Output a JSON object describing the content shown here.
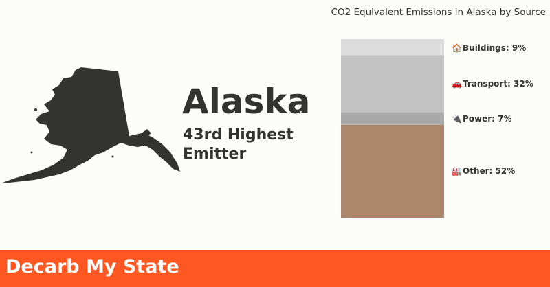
{
  "state": {
    "name": "Alaska",
    "rank_text": "43rd Highest Emitter"
  },
  "chart_data": {
    "type": "bar",
    "stacked": true,
    "title": "CO2 Equivalent Emissions in Alaska by Source",
    "unit": "%",
    "segments": [
      {
        "label": "Buildings: 9%",
        "category": "Buildings",
        "value": 9,
        "color": "#dcdcdc",
        "icon": "house-icon",
        "glyph": "🏠"
      },
      {
        "label": "Transport: 32%",
        "category": "Transport",
        "value": 32,
        "color": "#c2c2c2",
        "icon": "car-icon",
        "glyph": "🚗"
      },
      {
        "label": "Power: 7%",
        "category": "Power",
        "value": 7,
        "color": "#a9a9a9",
        "icon": "plug-icon",
        "glyph": "🔌"
      },
      {
        "label": "Other: 52%",
        "category": "Other",
        "value": 52,
        "color": "#ad876b",
        "icon": "factory-icon",
        "glyph": "🏭"
      }
    ]
  },
  "footer": {
    "title": "Decarb My State",
    "background": "#ff5722"
  }
}
